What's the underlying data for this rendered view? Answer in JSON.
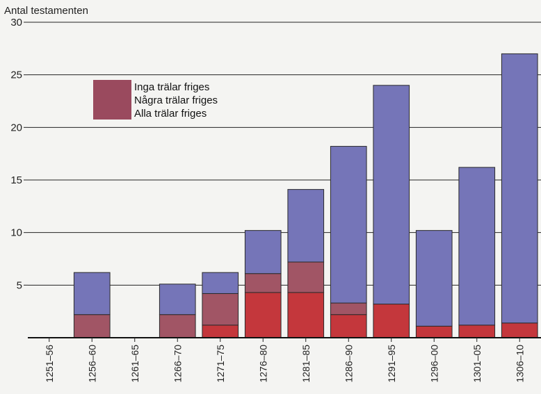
{
  "chart_data": {
    "type": "bar",
    "stacked": true,
    "ylabel": "Antal testamenten",
    "ylim": [
      0,
      30
    ],
    "yticks": [
      5,
      10,
      15,
      20,
      25,
      30
    ],
    "grid": true,
    "legend_position": "top-left",
    "categories": [
      "1251–56",
      "1256–60",
      "1261–65",
      "1266–70",
      "1271–75",
      "1276–80",
      "1281–85",
      "1286–90",
      "1291–95",
      "1296–00",
      "1301–05",
      "1306–10"
    ],
    "series": [
      {
        "name": "Alla trälar friges",
        "color": "#c4373c",
        "values": [
          0,
          0,
          0,
          0,
          1.2,
          4.3,
          4.3,
          2.2,
          3.2,
          1.1,
          1.2,
          1.4
        ]
      },
      {
        "name": "Några trälar friges",
        "color": "#a15565",
        "values": [
          0,
          2.2,
          0,
          2.2,
          3.0,
          1.8,
          2.9,
          1.1,
          0,
          0,
          0,
          0
        ]
      },
      {
        "name": "Inga trälar friges",
        "color": "#7575b8",
        "values": [
          0,
          4.0,
          0,
          2.9,
          2.0,
          4.1,
          6.9,
          14.9,
          20.8,
          9.1,
          15.0,
          25.6
        ]
      }
    ]
  },
  "legend_labels": [
    "Inga trälar friges",
    "Några trälar friges",
    "Alla trälar friges"
  ],
  "legend_swatch_color": "#9a4a5e"
}
